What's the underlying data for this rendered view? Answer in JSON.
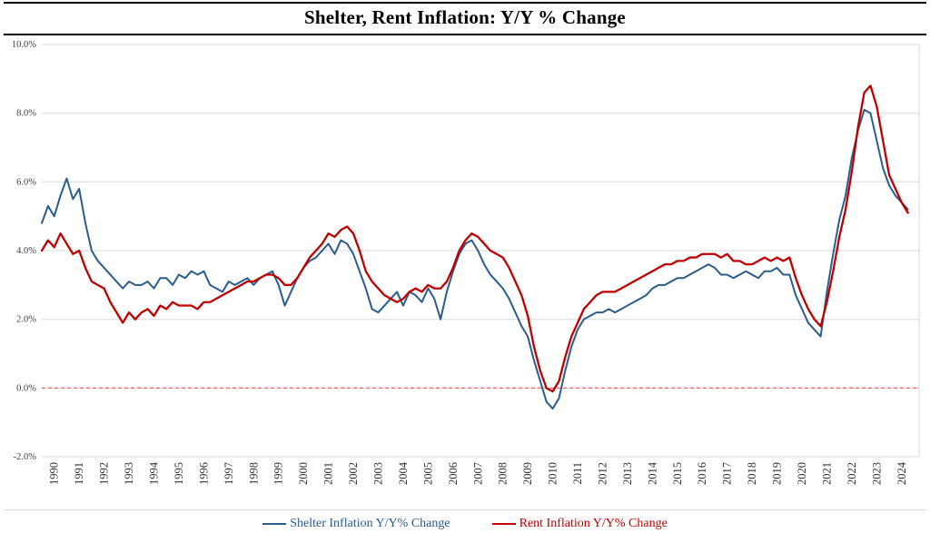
{
  "chart_data": {
    "type": "line",
    "title": "Shelter, Rent Inflation: Y/Y % Change",
    "xlim": [
      1990,
      2025.2
    ],
    "ylim": [
      -2,
      10
    ],
    "x_start": 1990,
    "x_step": 0.25,
    "grid": true,
    "grid_color": "#d9d9d9",
    "axis_text_color": "#404040",
    "ytick_labels": [
      "-2.0%",
      "0.0%",
      "2.0%",
      "4.0%",
      "6.0%",
      "8.0%",
      "10.0%"
    ],
    "ytick_values": [
      -2,
      0,
      2,
      4,
      6,
      8,
      10
    ],
    "xtick_labels": [
      "1990",
      "1991",
      "1992",
      "1993",
      "1994",
      "1995",
      "1996",
      "1997",
      "1998",
      "1999",
      "2000",
      "2001",
      "2002",
      "2003",
      "2004",
      "2005",
      "2006",
      "2007",
      "2008",
      "2009",
      "2010",
      "2011",
      "2012",
      "2013",
      "2014",
      "2015",
      "2016",
      "2017",
      "2018",
      "2019",
      "2020",
      "2021",
      "2022",
      "2023",
      "2024"
    ],
    "zero_line": {
      "value": 0,
      "color": "#ff4040",
      "dash": "4 3"
    },
    "legend_position": "bottom",
    "series": [
      {
        "name": "Shelter Inflation Y/Y% Change",
        "color": "#2b5d8c",
        "values": [
          4.8,
          5.3,
          5.0,
          5.6,
          6.1,
          5.5,
          5.8,
          4.8,
          4.0,
          3.7,
          3.5,
          3.3,
          3.1,
          2.9,
          3.1,
          3.0,
          3.0,
          3.1,
          2.9,
          3.2,
          3.2,
          3.0,
          3.3,
          3.2,
          3.4,
          3.3,
          3.4,
          3.0,
          2.9,
          2.8,
          3.1,
          3.0,
          3.1,
          3.2,
          3.0,
          3.2,
          3.3,
          3.4,
          3.0,
          2.4,
          2.8,
          3.2,
          3.5,
          3.7,
          3.8,
          4.0,
          4.2,
          3.9,
          4.3,
          4.2,
          3.9,
          3.4,
          2.9,
          2.3,
          2.2,
          2.4,
          2.6,
          2.8,
          2.4,
          2.8,
          2.7,
          2.5,
          2.9,
          2.6,
          2.0,
          2.8,
          3.4,
          3.9,
          4.2,
          4.3,
          4.0,
          3.6,
          3.3,
          3.1,
          2.9,
          2.6,
          2.2,
          1.8,
          1.5,
          0.8,
          0.2,
          -0.4,
          -0.6,
          -0.3,
          0.5,
          1.2,
          1.7,
          2.0,
          2.1,
          2.2,
          2.2,
          2.3,
          2.2,
          2.3,
          2.4,
          2.5,
          2.6,
          2.7,
          2.9,
          3.0,
          3.0,
          3.1,
          3.2,
          3.2,
          3.3,
          3.4,
          3.5,
          3.6,
          3.5,
          3.3,
          3.3,
          3.2,
          3.3,
          3.4,
          3.3,
          3.2,
          3.4,
          3.4,
          3.5,
          3.3,
          3.3,
          2.7,
          2.3,
          1.9,
          1.7,
          1.5,
          2.8,
          3.9,
          4.9,
          5.6,
          6.7,
          7.5,
          8.1,
          8.0,
          7.2,
          6.4,
          5.9,
          5.6,
          5.4,
          5.2
        ]
      },
      {
        "name": "Rent Inflation Y/Y% Change",
        "color": "#c00000",
        "values": [
          4.0,
          4.3,
          4.1,
          4.5,
          4.2,
          3.9,
          4.0,
          3.5,
          3.1,
          3.0,
          2.9,
          2.5,
          2.2,
          1.9,
          2.2,
          2.0,
          2.2,
          2.3,
          2.1,
          2.4,
          2.3,
          2.5,
          2.4,
          2.4,
          2.4,
          2.3,
          2.5,
          2.5,
          2.6,
          2.7,
          2.8,
          2.9,
          3.0,
          3.1,
          3.1,
          3.2,
          3.3,
          3.3,
          3.2,
          3.0,
          3.0,
          3.2,
          3.5,
          3.8,
          4.0,
          4.2,
          4.5,
          4.4,
          4.6,
          4.7,
          4.5,
          4.0,
          3.4,
          3.1,
          2.9,
          2.7,
          2.6,
          2.5,
          2.6,
          2.8,
          2.9,
          2.8,
          3.0,
          2.9,
          2.9,
          3.1,
          3.5,
          4.0,
          4.3,
          4.5,
          4.4,
          4.2,
          4.0,
          3.9,
          3.8,
          3.5,
          3.1,
          2.7,
          2.1,
          1.2,
          0.5,
          0.0,
          -0.1,
          0.2,
          0.9,
          1.5,
          1.9,
          2.3,
          2.5,
          2.7,
          2.8,
          2.8,
          2.8,
          2.9,
          3.0,
          3.1,
          3.2,
          3.3,
          3.4,
          3.5,
          3.6,
          3.6,
          3.7,
          3.7,
          3.8,
          3.8,
          3.9,
          3.9,
          3.9,
          3.8,
          3.9,
          3.7,
          3.7,
          3.6,
          3.6,
          3.7,
          3.8,
          3.7,
          3.8,
          3.7,
          3.8,
          3.2,
          2.7,
          2.3,
          2.0,
          1.8,
          2.5,
          3.4,
          4.4,
          5.2,
          6.3,
          7.6,
          8.6,
          8.8,
          8.2,
          7.2,
          6.2,
          5.8,
          5.4,
          5.1
        ]
      }
    ]
  }
}
